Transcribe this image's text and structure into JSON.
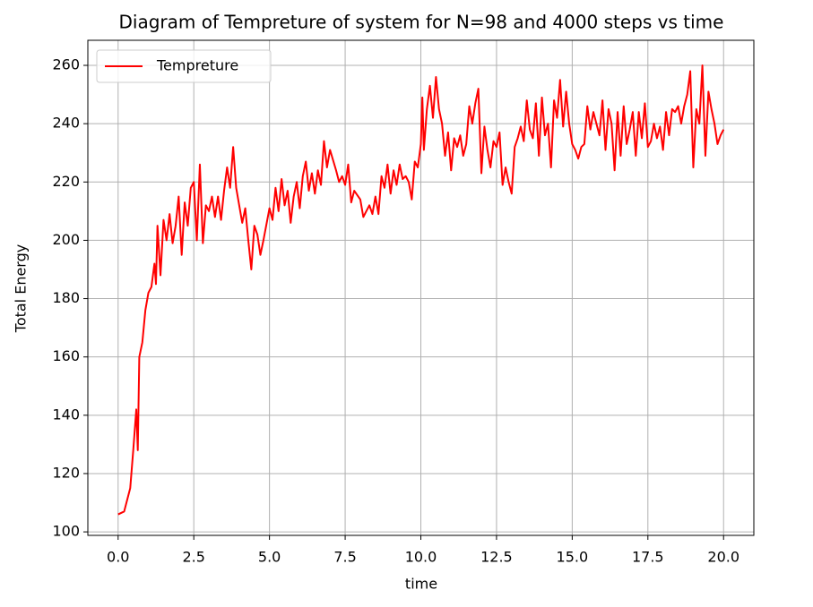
{
  "chart_data": {
    "type": "line",
    "title": "Diagram of Tempreture of system for N=98 and 4000 steps vs time",
    "xlabel": "time",
    "ylabel": "Total Energy",
    "xlim": [
      -1.0,
      21.0
    ],
    "ylim": [
      98.8,
      268.6
    ],
    "xticks": [
      {
        "value": 0,
        "label": "0.0"
      },
      2.5,
      {
        "value": 5,
        "label": "5.0"
      },
      7.5,
      {
        "value": 10,
        "label": "10.0"
      },
      12.5,
      {
        "value": 15,
        "label": "15.0"
      },
      17.5,
      {
        "value": 20,
        "label": "20.0"
      }
    ],
    "yticks": [
      100,
      120,
      140,
      160,
      180,
      200,
      220,
      240,
      260
    ],
    "grid": true,
    "legend": "upper left",
    "x": [
      0,
      0.2,
      0.4,
      0.5,
      0.6,
      0.65,
      0.7,
      0.8,
      0.9,
      1.0,
      1.1,
      1.2,
      1.25,
      1.3,
      1.4,
      1.5,
      1.6,
      1.7,
      1.8,
      1.9,
      2.0,
      2.1,
      2.2,
      2.3,
      2.4,
      2.5,
      2.6,
      2.7,
      2.8,
      2.9,
      3.0,
      3.1,
      3.2,
      3.3,
      3.4,
      3.5,
      3.6,
      3.7,
      3.8,
      3.9,
      4.0,
      4.1,
      4.2,
      4.3,
      4.4,
      4.5,
      4.6,
      4.7,
      4.8,
      5.0,
      5.1,
      5.2,
      5.3,
      5.4,
      5.5,
      5.6,
      5.7,
      5.8,
      5.9,
      6.0,
      6.1,
      6.2,
      6.3,
      6.4,
      6.5,
      6.6,
      6.7,
      6.8,
      6.9,
      7.0,
      7.2,
      7.3,
      7.4,
      7.5,
      7.6,
      7.7,
      7.8,
      8.0,
      8.1,
      8.2,
      8.3,
      8.4,
      8.5,
      8.6,
      8.7,
      8.8,
      8.9,
      9.0,
      9.1,
      9.2,
      9.3,
      9.4,
      9.5,
      9.6,
      9.7,
      9.8,
      9.9,
      10.0,
      10.05,
      10.1,
      10.2,
      10.3,
      10.4,
      10.5,
      10.6,
      10.7,
      10.8,
      10.9,
      11.0,
      11.1,
      11.2,
      11.3,
      11.4,
      11.5,
      11.6,
      11.7,
      11.8,
      11.9,
      12.0,
      12.1,
      12.2,
      12.3,
      12.4,
      12.5,
      12.6,
      12.7,
      12.8,
      12.9,
      13.0,
      13.1,
      13.2,
      13.3,
      13.4,
      13.5,
      13.6,
      13.7,
      13.8,
      13.9,
      14.0,
      14.1,
      14.2,
      14.3,
      14.4,
      14.5,
      14.6,
      14.7,
      14.8,
      14.9,
      15.0,
      15.1,
      15.2,
      15.3,
      15.4,
      15.5,
      15.6,
      15.7,
      15.8,
      15.9,
      16.0,
      16.1,
      16.2,
      16.3,
      16.4,
      16.5,
      16.6,
      16.7,
      16.8,
      16.9,
      17.0,
      17.1,
      17.2,
      17.3,
      17.4,
      17.5,
      17.6,
      17.7,
      17.8,
      17.9,
      18.0,
      18.1,
      18.2,
      18.3,
      18.4,
      18.5,
      18.6,
      18.7,
      18.8,
      18.9,
      19.0,
      19.1,
      19.2,
      19.3,
      19.4,
      19.5,
      19.6,
      19.7,
      19.8,
      19.9,
      20.0
    ],
    "series": [
      {
        "name": "Tempreture",
        "color": "#ff0000",
        "values": [
          106,
          107,
          115,
          128,
          142,
          128,
          160,
          165,
          176,
          182,
          184,
          192,
          185,
          205,
          188,
          207,
          200,
          209,
          199,
          205,
          215,
          195,
          213,
          205,
          218,
          220,
          200,
          226,
          199,
          212,
          210,
          215,
          208,
          215,
          207,
          217,
          225,
          218,
          232,
          218,
          212,
          206,
          211,
          200,
          190,
          205,
          202,
          195,
          200,
          211,
          207,
          218,
          210,
          221,
          212,
          217,
          206,
          215,
          220,
          211,
          222,
          227,
          217,
          223,
          216,
          224,
          219,
          234,
          225,
          231,
          224,
          220,
          222,
          219,
          226,
          213,
          217,
          214,
          208,
          210,
          212,
          209,
          215,
          209,
          222,
          218,
          226,
          216,
          224,
          219,
          226,
          221,
          222,
          220,
          214,
          227,
          225,
          233,
          249,
          231,
          245,
          253,
          242,
          256,
          245,
          240,
          229,
          237,
          224,
          235,
          232,
          236,
          229,
          233,
          246,
          240,
          247,
          252,
          223,
          239,
          231,
          225,
          234,
          232,
          237,
          219,
          225,
          220,
          216,
          232,
          235,
          239,
          234,
          248,
          238,
          235,
          247,
          229,
          249,
          236,
          240,
          225,
          248,
          242,
          255,
          239,
          251,
          240,
          233,
          231,
          228,
          232,
          233,
          246,
          238,
          244,
          240,
          236,
          248,
          231,
          245,
          240,
          224,
          244,
          229,
          246,
          233,
          238,
          244,
          229,
          244,
          235,
          247,
          232,
          234,
          240,
          235,
          239,
          231,
          244,
          236,
          245,
          244,
          246,
          240,
          246,
          250,
          258,
          225,
          245,
          240,
          260,
          229,
          251,
          245,
          240,
          233,
          236,
          238
        ]
      }
    ]
  }
}
